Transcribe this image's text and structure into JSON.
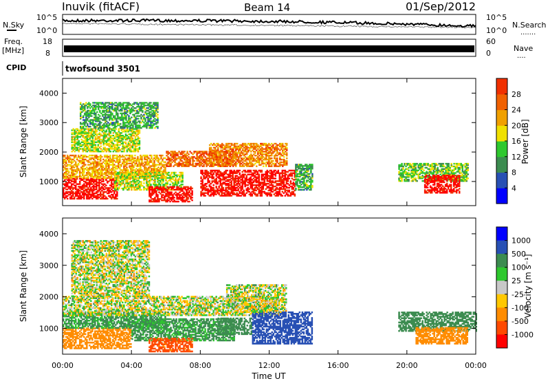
{
  "header": {
    "station": "Inuvik (fitACF)",
    "beam": "Beam 14",
    "date": "01/Sep/2012"
  },
  "left_labels": {
    "nsky": "N.Sky",
    "nsky_hi": "10^5",
    "nsky_lo": "10^0",
    "freq_line1": "Freq.",
    "freq_line2": "[MHz]",
    "freq_hi": "18",
    "freq_lo": "8",
    "cpid": "CPID"
  },
  "right_labels": {
    "nsearch_hi": "10^5",
    "nsearch_lo": "10^0",
    "nsearch": "N.Search",
    "nsearch_dots": ".......",
    "nave_hi": "60",
    "nave_lo": "0",
    "nave": "Nave",
    "nave_dots": "...."
  },
  "cpid_text": "twofsound 3501",
  "colors": {
    "power": [
      "#0000ff",
      "#2850b4",
      "#3c8c50",
      "#2ec82e",
      "#f0e000",
      "#f0a000",
      "#f06000",
      "#f03000",
      "#ff0000"
    ],
    "velocity": [
      "#ff0000",
      "#ff4a00",
      "#ff8c00",
      "#ffc800",
      "#c8c8c8",
      "#2ec82e",
      "#3c8c50",
      "#2850b4",
      "#0000ff"
    ]
  },
  "chart_data": [
    {
      "type": "heatmap",
      "name": "power",
      "ylabel": "Slant Range [km]",
      "yticks": [
        "1000",
        "2000",
        "3000",
        "4000"
      ],
      "ylim": [
        180,
        4500
      ],
      "xticks": [
        "00:00",
        "04:00",
        "08:00",
        "12:00",
        "16:00",
        "20:00",
        "00:00"
      ],
      "colorbar_label": "Power [dB]",
      "colorbar_ticks": [
        "4",
        "8",
        "12",
        "16",
        "20",
        "24",
        "28"
      ],
      "colorbar_range": [
        0,
        30
      ],
      "regions": [
        {
          "t0": 0.0,
          "t1": 3.2,
          "r0": 400,
          "r1": 1100,
          "level": 28
        },
        {
          "t0": 0.0,
          "t1": 6.0,
          "r0": 1100,
          "r1": 1900,
          "level": 18
        },
        {
          "t0": 0.5,
          "t1": 4.5,
          "r0": 2000,
          "r1": 2800,
          "level": 14
        },
        {
          "t0": 1.0,
          "t1": 5.5,
          "r0": 2800,
          "r1": 3700,
          "level": 10
        },
        {
          "t0": 3.0,
          "t1": 7.0,
          "r0": 700,
          "r1": 1300,
          "level": 14
        },
        {
          "t0": 5.0,
          "t1": 7.5,
          "r0": 300,
          "r1": 800,
          "level": 28
        },
        {
          "t0": 8.0,
          "t1": 13.5,
          "r0": 500,
          "r1": 1400,
          "level": 28
        },
        {
          "t0": 8.5,
          "t1": 13.0,
          "r0": 1500,
          "r1": 2300,
          "level": 20
        },
        {
          "t0": 6.0,
          "t1": 10.0,
          "r0": 1500,
          "r1": 2000,
          "level": 22
        },
        {
          "t0": 13.5,
          "t1": 14.5,
          "r0": 700,
          "r1": 1600,
          "level": 10
        },
        {
          "t0": 19.5,
          "t1": 23.5,
          "r0": 1000,
          "r1": 1600,
          "level": 12
        },
        {
          "t0": 21.0,
          "t1": 23.0,
          "r0": 600,
          "r1": 1200,
          "level": 28
        }
      ]
    },
    {
      "type": "heatmap",
      "name": "velocity",
      "ylabel": "Slant Range [km]",
      "yticks": [
        "1000",
        "2000",
        "3000",
        "4000"
      ],
      "ylim": [
        180,
        4500
      ],
      "xticks": [
        "00:00",
        "04:00",
        "08:00",
        "12:00",
        "16:00",
        "20:00",
        "00:00"
      ],
      "xlabel": "Time UT",
      "colorbar_label": "Velocity [m s⁻¹]",
      "colorbar_ticks": [
        "1000",
        "500",
        "100",
        "25",
        "-25",
        "-100",
        "-500",
        "-1000"
      ],
      "regions": [
        {
          "t0": 0.0,
          "t1": 4.0,
          "r0": 350,
          "r1": 1000,
          "level": -300
        },
        {
          "t0": 0.0,
          "t1": 6.0,
          "r0": 1000,
          "r1": 1500,
          "level": 150
        },
        {
          "t0": 0.0,
          "t1": 12.5,
          "r0": 1400,
          "r1": 2000,
          "level": 0
        },
        {
          "t0": 0.5,
          "t1": 5.0,
          "r0": 2000,
          "r1": 3800,
          "level": 0
        },
        {
          "t0": 4.0,
          "t1": 10.0,
          "r0": 600,
          "r1": 1300,
          "level": 150
        },
        {
          "t0": 5.0,
          "t1": 7.5,
          "r0": 250,
          "r1": 700,
          "level": -600
        },
        {
          "t0": 9.0,
          "t1": 11.0,
          "r0": 800,
          "r1": 1300,
          "level": 300
        },
        {
          "t0": 11.0,
          "t1": 14.5,
          "r0": 500,
          "r1": 1500,
          "level": 800
        },
        {
          "t0": 9.5,
          "t1": 13.0,
          "r0": 1500,
          "r1": 2400,
          "level": 0
        },
        {
          "t0": 19.5,
          "t1": 24.0,
          "r0": 900,
          "r1": 1500,
          "level": 300
        },
        {
          "t0": 20.5,
          "t1": 23.5,
          "r0": 500,
          "r1": 1000,
          "level": -300
        }
      ]
    }
  ]
}
